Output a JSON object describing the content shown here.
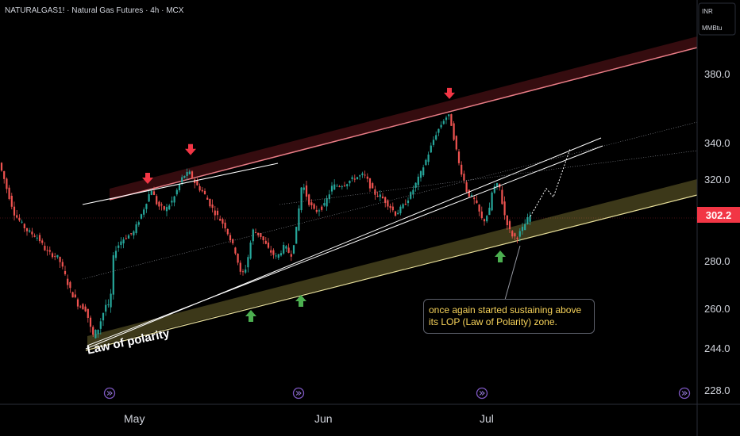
{
  "header": {
    "title": "NATURALGAS1! · Natural Gas Futures · 4h · MCX"
  },
  "units": {
    "currency": "INR",
    "unit": "MMBtu"
  },
  "last_price": "302.2",
  "annotations": {
    "lop_label": "Law of polarity",
    "note": "once again started sustaining above its LOP (Law of Polarity) zone."
  },
  "colors": {
    "up": "#26a69a",
    "down": "#ef5350",
    "resistance": "#f23645",
    "support": "#d6c85a"
  },
  "chart_data": {
    "type": "candlestick",
    "title": "NATURALGAS1! · Natural Gas Futures · 4h · MCX",
    "y_ticks": [
      "380.0",
      "340.0",
      "320.0",
      "280.0",
      "260.0",
      "244.0",
      "228.0"
    ],
    "x_ticks": [
      "May",
      "Jun",
      "Jul"
    ],
    "last_value": 302.2,
    "price_path": [
      [
        0,
        330
      ],
      [
        10,
        316
      ],
      [
        20,
        304
      ],
      [
        35,
        296
      ],
      [
        50,
        292
      ],
      [
        60,
        285
      ],
      [
        75,
        282
      ],
      [
        90,
        268
      ],
      [
        100,
        262
      ],
      [
        110,
        260
      ],
      [
        118,
        249
      ],
      [
        125,
        252
      ],
      [
        135,
        262
      ],
      [
        140,
        260
      ],
      [
        145,
        285
      ],
      [
        155,
        291
      ],
      [
        170,
        295
      ],
      [
        182,
        306
      ],
      [
        192,
        316
      ],
      [
        200,
        308
      ],
      [
        210,
        306
      ],
      [
        220,
        311
      ],
      [
        232,
        322
      ],
      [
        240,
        324
      ],
      [
        248,
        318
      ],
      [
        258,
        314
      ],
      [
        270,
        306
      ],
      [
        285,
        298
      ],
      [
        298,
        285
      ],
      [
        305,
        274
      ],
      [
        312,
        278
      ],
      [
        320,
        296
      ],
      [
        330,
        293
      ],
      [
        340,
        286
      ],
      [
        350,
        282
      ],
      [
        360,
        288
      ],
      [
        368,
        283
      ],
      [
        374,
        294
      ],
      [
        382,
        319
      ],
      [
        390,
        310
      ],
      [
        398,
        305
      ],
      [
        410,
        308
      ],
      [
        420,
        317
      ],
      [
        435,
        318
      ],
      [
        448,
        321
      ],
      [
        460,
        323
      ],
      [
        472,
        314
      ],
      [
        482,
        312
      ],
      [
        492,
        308
      ],
      [
        500,
        304
      ],
      [
        510,
        308
      ],
      [
        520,
        314
      ],
      [
        530,
        322
      ],
      [
        540,
        333
      ],
      [
        550,
        345
      ],
      [
        562,
        355
      ],
      [
        568,
        356
      ],
      [
        572,
        346
      ],
      [
        580,
        328
      ],
      [
        590,
        314
      ],
      [
        600,
        310
      ],
      [
        610,
        300
      ],
      [
        618,
        306
      ],
      [
        622,
        316
      ],
      [
        630,
        318
      ],
      [
        636,
        305
      ],
      [
        645,
        294
      ],
      [
        652,
        292
      ],
      [
        660,
        297
      ],
      [
        668,
        303
      ]
    ],
    "projection": [
      [
        668,
        303
      ],
      [
        688,
        316
      ],
      [
        697,
        312
      ],
      [
        718,
        337
      ]
    ],
    "signals": [
      {
        "type": "down",
        "x": 186
      },
      {
        "type": "down",
        "x": 240
      },
      {
        "type": "down",
        "x": 566
      },
      {
        "type": "up",
        "x": 316
      },
      {
        "type": "up",
        "x": 379
      },
      {
        "type": "up",
        "x": 630
      }
    ]
  }
}
